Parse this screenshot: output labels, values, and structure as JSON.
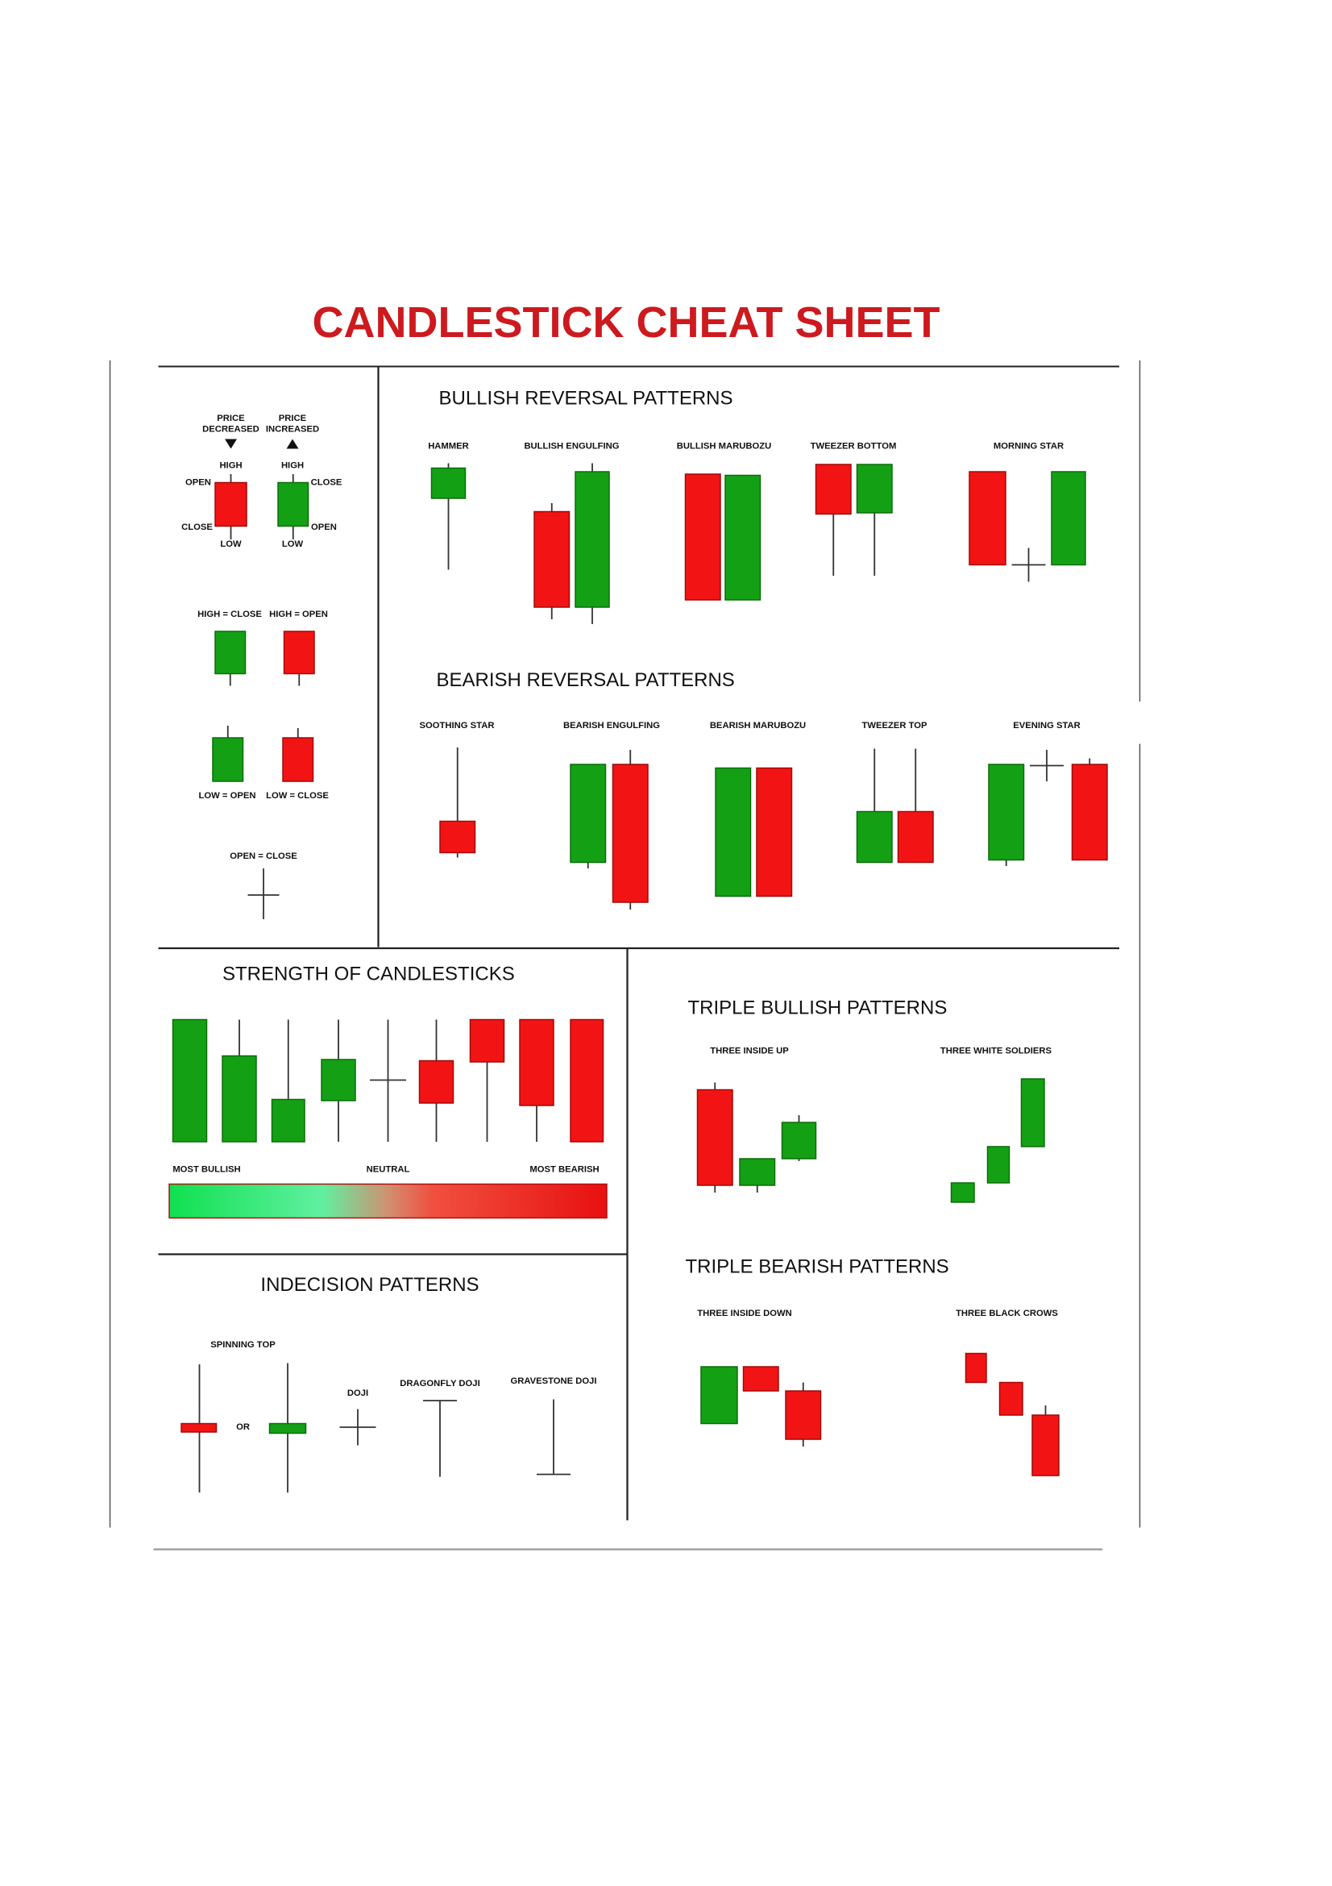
{
  "title": "CANDLESTICK CHEAT SHEET",
  "anatomy": {
    "bearish": {
      "heading": [
        "PRICE",
        "DECREASED"
      ],
      "high": "HIGH",
      "open": "OPEN",
      "close": "CLOSE",
      "low": "LOW"
    },
    "bullish": {
      "heading": [
        "PRICE",
        "INCREASED"
      ],
      "high": "HIGH",
      "close": "CLOSE",
      "open": "OPEN",
      "low": "LOW"
    },
    "equalities": [
      "HIGH = CLOSE",
      "HIGH = OPEN",
      "LOW = OPEN",
      "LOW = CLOSE",
      "OPEN = CLOSE"
    ]
  },
  "bullish_reversal": {
    "title": "BULLISH REVERSAL PATTERNS",
    "patterns": [
      "HAMMER",
      "BULLISH ENGULFING",
      "BULLISH MARUBOZU",
      "TWEEZER BOTTOM",
      "MORNING STAR"
    ]
  },
  "bearish_reversal": {
    "title": "BEARISH REVERSAL PATTERNS",
    "patterns": [
      "SOOTHING STAR",
      "BEARISH ENGULFING",
      "BEARISH MARUBOZU",
      "TWEEZER TOP",
      "EVENING STAR"
    ]
  },
  "strength": {
    "title": "STRENGTH OF CANDLESTICKS",
    "scale": [
      "MOST BULLISH",
      "NEUTRAL",
      "MOST BEARISH"
    ]
  },
  "indecision": {
    "title": "INDECISION PATTERNS",
    "patterns": [
      "SPINNING TOP",
      "DOJI",
      "DRAGONFLY DOJI",
      "GRAVESTONE DOJI"
    ],
    "connector": "OR"
  },
  "triple_bullish": {
    "title": "TRIPLE BULLISH PATTERNS",
    "patterns": [
      "THREE INSIDE UP",
      "THREE WHITE SOLDIERS"
    ]
  },
  "triple_bearish": {
    "title": "TRIPLE BEARISH PATTERNS",
    "patterns": [
      "THREE INSIDE DOWN",
      "THREE BLACK CROWS"
    ]
  }
}
